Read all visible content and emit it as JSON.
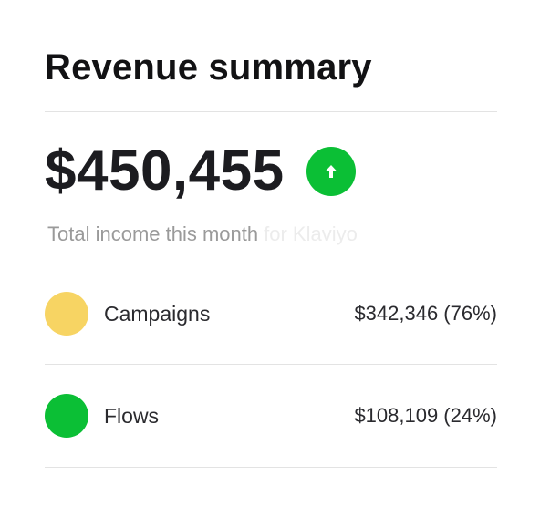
{
  "summary": {
    "title": "Revenue summary",
    "total": "$450,455",
    "trend": "up",
    "trend_color": "#0bbf35",
    "caption": "Total income this month",
    "caption_faded": "for Klaviyo"
  },
  "breakdown": [
    {
      "label": "Campaigns",
      "value": "$342,346 (76%)",
      "color": "#f7d463"
    },
    {
      "label": "Flows",
      "value": "$108,109 (24%)",
      "color": "#0bbf35"
    }
  ],
  "icons": {
    "trend": "arrow-up-icon",
    "legend": "color-dot"
  }
}
